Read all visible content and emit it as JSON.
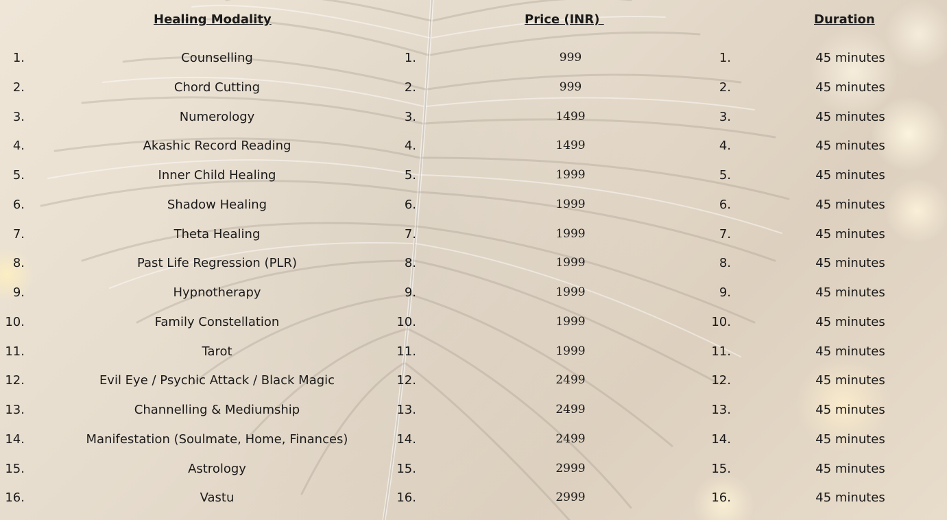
{
  "headers": {
    "modality": "Healing Modality",
    "price": "Price (INR) ",
    "duration": "Duration"
  },
  "rows": [
    {
      "num": "1.",
      "modality": "Counselling",
      "price": "999",
      "duration": "45 minutes"
    },
    {
      "num": "2.",
      "modality": "Chord Cutting",
      "price": "999",
      "duration": "45 minutes"
    },
    {
      "num": "3.",
      "modality": "Numerology",
      "price": "1499",
      "duration": "45 minutes"
    },
    {
      "num": "4.",
      "modality": "Akashic Record Reading",
      "price": "1499",
      "duration": "45 minutes"
    },
    {
      "num": "5.",
      "modality": "Inner Child Healing",
      "price": "1999",
      "duration": "45 minutes"
    },
    {
      "num": "6.",
      "modality": "Shadow Healing",
      "price": "1999",
      "duration": "45 minutes"
    },
    {
      "num": "7.",
      "modality": "Theta Healing",
      "price": "1999",
      "duration": "45 minutes"
    },
    {
      "num": "8.",
      "modality": "Past Life Regression (PLR)",
      "price": "1999",
      "duration": "45 minutes"
    },
    {
      "num": "9.",
      "modality": "Hypnotherapy",
      "price": "1999",
      "duration": "45 minutes"
    },
    {
      "num": "10.",
      "modality": "Family Constellation",
      "price": "1999",
      "duration": "45 minutes"
    },
    {
      "num": "11.",
      "modality": "Tarot",
      "price": "1999",
      "duration": "45 minutes"
    },
    {
      "num": "12.",
      "modality": "Evil Eye / Psychic Attack / Black Magic",
      "price": "2499",
      "duration": "45 minutes"
    },
    {
      "num": "13.",
      "modality": "Channelling & Mediumship",
      "price": "2499",
      "duration": "45 minutes"
    },
    {
      "num": "14.",
      "modality": "Manifestation (Soulmate, Home, Finances)",
      "price": "2499",
      "duration": "45 minutes"
    },
    {
      "num": "15.",
      "modality": "Astrology",
      "price": "2999",
      "duration": "45 minutes"
    },
    {
      "num": "16.",
      "modality": "Vastu",
      "price": "2999",
      "duration": "45 minutes"
    }
  ],
  "colors": {
    "background": "#e9dfcf",
    "text": "#1a1a1a",
    "bokeh": "#fff3d6"
  }
}
